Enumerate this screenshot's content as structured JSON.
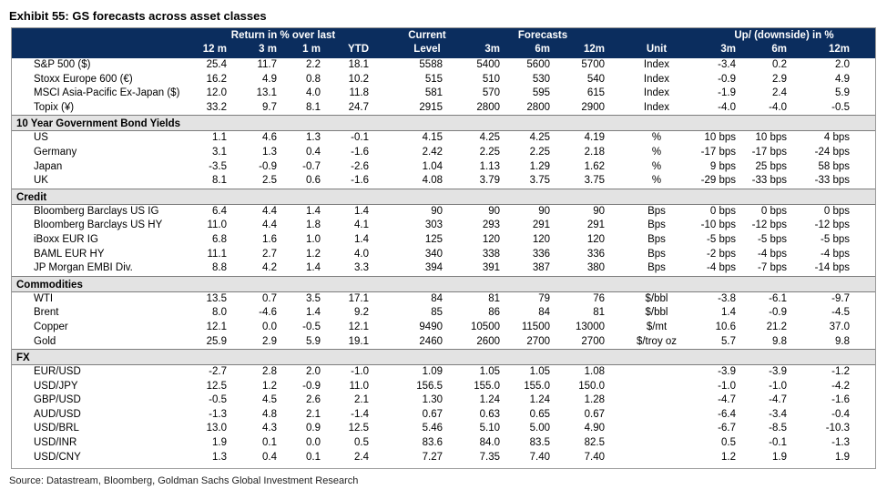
{
  "title": "Exhibit 55: GS forecasts across asset classes",
  "source": "Source: Datastream, Bloomberg, Goldman Sachs Global Investment Research",
  "header": {
    "return_group": "Return in % over last",
    "current_line1": "Current",
    "current_line2": "Level",
    "forecasts_group": "Forecasts",
    "updown_group": "Up/ (downside) in %",
    "ret_12m": "12 m",
    "ret_3m": "3 m",
    "ret_1m": "1 m",
    "ret_ytd": "YTD",
    "f_3m": "3m",
    "f_6m": "6m",
    "f_12m": "12m",
    "unit": "Unit",
    "u_3m": "3m",
    "u_6m": "6m",
    "u_12m": "12m"
  },
  "top_rows": [
    {
      "label": "S&P 500 ($)",
      "r12": "25.4",
      "r3": "11.7",
      "r1": "2.2",
      "ytd": "18.1",
      "level": "5588",
      "f3": "5400",
      "f6": "5600",
      "f12": "5700",
      "unit": "Index",
      "u3": "-3.4",
      "u6": "0.2",
      "u12": "2.0"
    },
    {
      "label": "Stoxx Europe 600 (€)",
      "r12": "16.2",
      "r3": "4.9",
      "r1": "0.8",
      "ytd": "10.2",
      "level": "515",
      "f3": "510",
      "f6": "530",
      "f12": "540",
      "unit": "Index",
      "u3": "-0.9",
      "u6": "2.9",
      "u12": "4.9"
    },
    {
      "label": "MSCI Asia-Pacific Ex-Japan ($)",
      "r12": "12.0",
      "r3": "13.1",
      "r1": "4.0",
      "ytd": "11.8",
      "level": "581",
      "f3": "570",
      "f6": "595",
      "f12": "615",
      "unit": "Index",
      "u3": "-1.9",
      "u6": "2.4",
      "u12": "5.9"
    },
    {
      "label": "Topix (¥)",
      "r12": "33.2",
      "r3": "9.7",
      "r1": "8.1",
      "ytd": "24.7",
      "level": "2915",
      "f3": "2800",
      "f6": "2800",
      "f12": "2900",
      "unit": "Index",
      "u3": "-4.0",
      "u6": "-4.0",
      "u12": "-0.5"
    }
  ],
  "sections": [
    {
      "name": "10 Year Government Bond Yields",
      "rows": [
        {
          "label": "US",
          "r12": "1.1",
          "r3": "4.6",
          "r1": "1.3",
          "ytd": "-0.1",
          "level": "4.15",
          "f3": "4.25",
          "f6": "4.25",
          "f12": "4.19",
          "unit": "%",
          "u3": "10 bps",
          "u6": "10 bps",
          "u12": "4 bps"
        },
        {
          "label": "Germany",
          "r12": "3.1",
          "r3": "1.3",
          "r1": "0.4",
          "ytd": "-1.6",
          "level": "2.42",
          "f3": "2.25",
          "f6": "2.25",
          "f12": "2.18",
          "unit": "%",
          "u3": "-17 bps",
          "u6": "-17 bps",
          "u12": "-24 bps"
        },
        {
          "label": "Japan",
          "r12": "-3.5",
          "r3": "-0.9",
          "r1": "-0.7",
          "ytd": "-2.6",
          "level": "1.04",
          "f3": "1.13",
          "f6": "1.29",
          "f12": "1.62",
          "unit": "%",
          "u3": "9 bps",
          "u6": "25 bps",
          "u12": "58 bps"
        },
        {
          "label": "UK",
          "r12": "8.1",
          "r3": "2.5",
          "r1": "0.6",
          "ytd": "-1.6",
          "level": "4.08",
          "f3": "3.79",
          "f6": "3.75",
          "f12": "3.75",
          "unit": "%",
          "u3": "-29 bps",
          "u6": "-33 bps",
          "u12": "-33 bps"
        }
      ]
    },
    {
      "name": "Credit",
      "rows": [
        {
          "label": "Bloomberg Barclays US IG",
          "r12": "6.4",
          "r3": "4.4",
          "r1": "1.4",
          "ytd": "1.4",
          "level": "90",
          "f3": "90",
          "f6": "90",
          "f12": "90",
          "unit": "Bps",
          "u3": "0 bps",
          "u6": "0 bps",
          "u12": "0 bps"
        },
        {
          "label": "Bloomberg Barclays US HY",
          "r12": "11.0",
          "r3": "4.4",
          "r1": "1.8",
          "ytd": "4.1",
          "level": "303",
          "f3": "293",
          "f6": "291",
          "f12": "291",
          "unit": "Bps",
          "u3": "-10 bps",
          "u6": "-12 bps",
          "u12": "-12 bps"
        },
        {
          "label": "iBoxx EUR IG",
          "r12": "6.8",
          "r3": "1.6",
          "r1": "1.0",
          "ytd": "1.4",
          "level": "125",
          "f3": "120",
          "f6": "120",
          "f12": "120",
          "unit": "Bps",
          "u3": "-5 bps",
          "u6": "-5 bps",
          "u12": "-5 bps"
        },
        {
          "label": "BAML EUR HY",
          "r12": "11.1",
          "r3": "2.7",
          "r1": "1.2",
          "ytd": "4.0",
          "level": "340",
          "f3": "338",
          "f6": "336",
          "f12": "336",
          "unit": "Bps",
          "u3": "-2 bps",
          "u6": "-4 bps",
          "u12": "-4 bps"
        },
        {
          "label": "JP Morgan EMBI Div.",
          "r12": "8.8",
          "r3": "4.2",
          "r1": "1.4",
          "ytd": "3.3",
          "level": "394",
          "f3": "391",
          "f6": "387",
          "f12": "380",
          "unit": "Bps",
          "u3": "-4 bps",
          "u6": "-7 bps",
          "u12": "-14 bps"
        }
      ]
    },
    {
      "name": "Commodities",
      "rows": [
        {
          "label": "WTI",
          "r12": "13.5",
          "r3": "0.7",
          "r1": "3.5",
          "ytd": "17.1",
          "level": "84",
          "f3": "81",
          "f6": "79",
          "f12": "76",
          "unit": "$/bbl",
          "u3": "-3.8",
          "u6": "-6.1",
          "u12": "-9.7"
        },
        {
          "label": "Brent",
          "r12": "8.0",
          "r3": "-4.6",
          "r1": "1.4",
          "ytd": "9.2",
          "level": "85",
          "f3": "86",
          "f6": "84",
          "f12": "81",
          "unit": "$/bbl",
          "u3": "1.4",
          "u6": "-0.9",
          "u12": "-4.5"
        },
        {
          "label": "Copper",
          "r12": "12.1",
          "r3": "0.0",
          "r1": "-0.5",
          "ytd": "12.1",
          "level": "9490",
          "f3": "10500",
          "f6": "11500",
          "f12": "13000",
          "unit": "$/mt",
          "u3": "10.6",
          "u6": "21.2",
          "u12": "37.0"
        },
        {
          "label": "Gold",
          "r12": "25.9",
          "r3": "2.9",
          "r1": "5.9",
          "ytd": "19.1",
          "level": "2460",
          "f3": "2600",
          "f6": "2700",
          "f12": "2700",
          "unit": "$/troy oz",
          "u3": "5.7",
          "u6": "9.8",
          "u12": "9.8"
        }
      ]
    },
    {
      "name": "FX",
      "rows": [
        {
          "label": "EUR/USD",
          "r12": "-2.7",
          "r3": "2.8",
          "r1": "2.0",
          "ytd": "-1.0",
          "level": "1.09",
          "f3": "1.05",
          "f6": "1.05",
          "f12": "1.08",
          "unit": "",
          "u3": "-3.9",
          "u6": "-3.9",
          "u12": "-1.2"
        },
        {
          "label": "USD/JPY",
          "r12": "12.5",
          "r3": "1.2",
          "r1": "-0.9",
          "ytd": "11.0",
          "level": "156.5",
          "f3": "155.0",
          "f6": "155.0",
          "f12": "150.0",
          "unit": "",
          "u3": "-1.0",
          "u6": "-1.0",
          "u12": "-4.2"
        },
        {
          "label": "GBP/USD",
          "r12": "-0.5",
          "r3": "4.5",
          "r1": "2.6",
          "ytd": "2.1",
          "level": "1.30",
          "f3": "1.24",
          "f6": "1.24",
          "f12": "1.28",
          "unit": "",
          "u3": "-4.7",
          "u6": "-4.7",
          "u12": "-1.6"
        },
        {
          "label": "AUD/USD",
          "r12": "-1.3",
          "r3": "4.8",
          "r1": "2.1",
          "ytd": "-1.4",
          "level": "0.67",
          "f3": "0.63",
          "f6": "0.65",
          "f12": "0.67",
          "unit": "",
          "u3": "-6.4",
          "u6": "-3.4",
          "u12": "-0.4"
        },
        {
          "label": "USD/BRL",
          "r12": "13.0",
          "r3": "4.3",
          "r1": "0.9",
          "ytd": "12.5",
          "level": "5.46",
          "f3": "5.10",
          "f6": "5.00",
          "f12": "4.90",
          "unit": "",
          "u3": "-6.7",
          "u6": "-8.5",
          "u12": "-10.3"
        },
        {
          "label": "USD/INR",
          "r12": "1.9",
          "r3": "0.1",
          "r1": "0.0",
          "ytd": "0.5",
          "level": "83.6",
          "f3": "84.0",
          "f6": "83.5",
          "f12": "82.5",
          "unit": "",
          "u3": "0.5",
          "u6": "-0.1",
          "u12": "-1.3"
        },
        {
          "label": "USD/CNY",
          "r12": "1.3",
          "r3": "0.4",
          "r1": "0.1",
          "ytd": "2.4",
          "level": "7.27",
          "f3": "7.35",
          "f6": "7.40",
          "f12": "7.40",
          "unit": "",
          "u3": "1.2",
          "u6": "1.9",
          "u12": "1.9"
        }
      ]
    }
  ]
}
